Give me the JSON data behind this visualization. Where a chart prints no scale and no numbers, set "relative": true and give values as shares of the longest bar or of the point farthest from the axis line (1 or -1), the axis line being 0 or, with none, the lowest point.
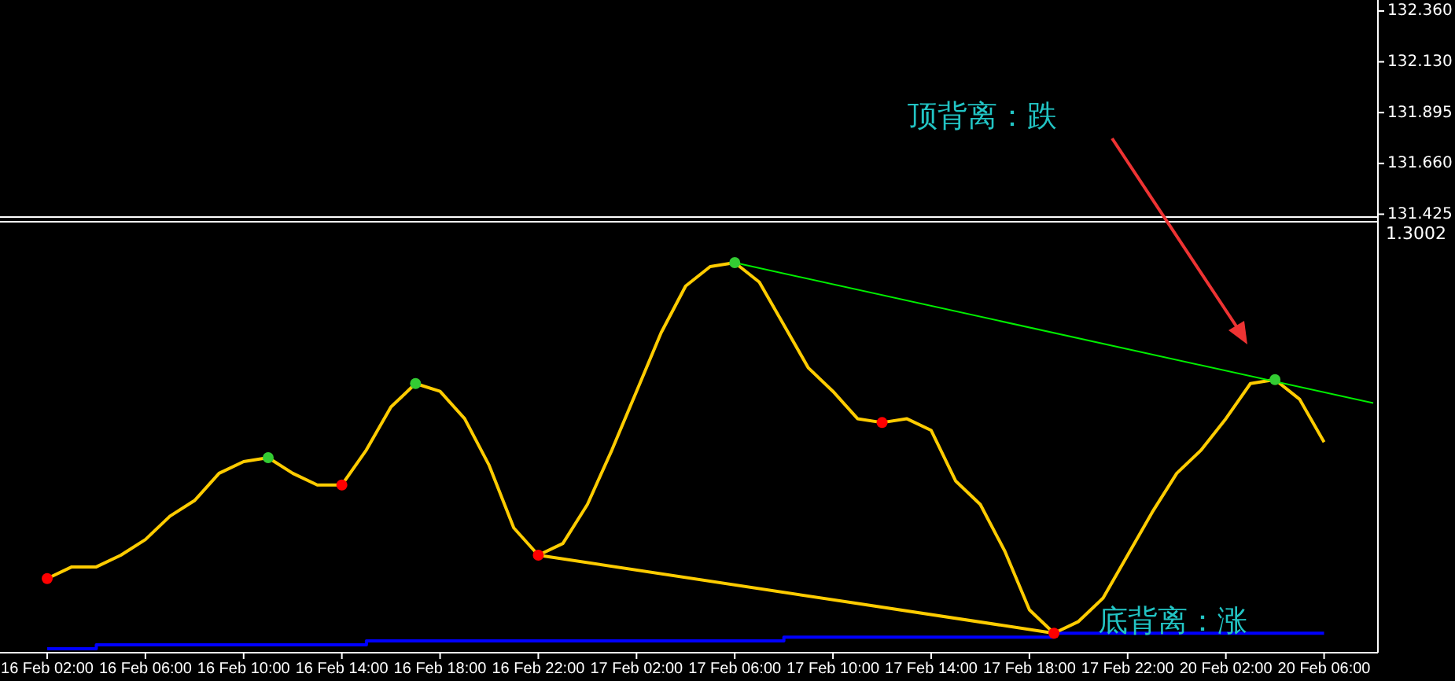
{
  "chart_data": {
    "type": "line",
    "relative": true,
    "tick_labels": "x",
    "categories": [
      "16 Feb 02:00",
      null,
      null,
      null,
      "16 Feb 06:00",
      null,
      null,
      null,
      "16 Feb 10:00",
      null,
      null,
      null,
      "16 Feb 14:00",
      null,
      null,
      null,
      "16 Feb 18:00",
      null,
      null,
      null,
      "16 Feb 22:00",
      null,
      null,
      null,
      "17 Feb 02:00",
      null,
      null,
      null,
      "17 Feb 06:00",
      null,
      null,
      null,
      "17 Feb 10:00",
      null,
      null,
      null,
      "17 Feb 14:00",
      null,
      null,
      null,
      "17 Feb 18:00",
      null,
      null,
      null,
      "17 Feb 22:00",
      null,
      null,
      null,
      "20 Feb 02:00",
      null,
      null,
      null,
      "20 Feb 06:00",
      null,
      null
    ],
    "series": [
      {
        "type": "step",
        "color": "#0000ff",
        "values": [
          0.01,
          0.01,
          0.02,
          0.02,
          0.02,
          0.02,
          0.02,
          0.02,
          0.02,
          0.02,
          0.02,
          0.02,
          0.02,
          0.03,
          0.03,
          0.03,
          0.03,
          0.03,
          0.03,
          0.03,
          0.03,
          0.03,
          0.03,
          0.03,
          0.03,
          0.03,
          0.03,
          0.03,
          0.03,
          0.03,
          0.04,
          0.04,
          0.04,
          0.04,
          0.04,
          0.04,
          0.04,
          0.04,
          0.04,
          0.04,
          0.04,
          0.05,
          0.05,
          0.05,
          0.05,
          0.05,
          0.05,
          0.05,
          0.05,
          0.05,
          0.05,
          0.05,
          0.05,
          null,
          null
        ]
      },
      {
        "type": "line",
        "color": "#ffcc00",
        "values": [
          0.19,
          0.22,
          0.22,
          0.25,
          0.29,
          0.35,
          0.39,
          0.46,
          0.49,
          0.5,
          0.46,
          0.43,
          0.43,
          0.52,
          0.63,
          0.69,
          0.67,
          0.6,
          0.48,
          0.32,
          0.25,
          0.28,
          0.38,
          0.52,
          0.67,
          0.82,
          0.94,
          0.99,
          1,
          0.95,
          0.84,
          0.73,
          0.67,
          0.6,
          0.59,
          0.6,
          0.57,
          0.44,
          0.38,
          0.26,
          0.11,
          0.05,
          0.08,
          0.14,
          0.25,
          0.36,
          0.46,
          0.52,
          0.6,
          0.69,
          0.7,
          0.65,
          0.54,
          null,
          null
        ]
      },
      {
        "type": "line",
        "color": "#00ee00",
        "values": [
          null,
          null,
          null,
          null,
          null,
          null,
          null,
          null,
          null,
          null,
          null,
          null,
          null,
          null,
          null,
          null,
          null,
          null,
          null,
          null,
          null,
          null,
          null,
          null,
          null,
          null,
          null,
          null,
          1,
          null,
          null,
          null,
          null,
          null,
          null,
          null,
          null,
          null,
          null,
          null,
          null,
          null,
          null,
          null,
          null,
          null,
          null,
          null,
          null,
          null,
          null,
          null,
          null,
          null,
          0.64
        ]
      },
      {
        "type": "line",
        "color": "#ffcc00",
        "values": [
          null,
          null,
          null,
          null,
          null,
          null,
          null,
          null,
          null,
          null,
          null,
          null,
          null,
          null,
          null,
          null,
          null,
          null,
          null,
          null,
          0.25,
          null,
          null,
          null,
          null,
          null,
          null,
          null,
          null,
          null,
          null,
          null,
          null,
          null,
          null,
          null,
          null,
          null,
          null,
          null,
          null,
          0.05,
          null,
          null,
          null,
          null,
          null,
          null,
          null,
          null,
          null,
          null,
          null,
          null,
          null
        ]
      },
      {
        "type": "scatter",
        "marker": "circle",
        "color": "#33cc33",
        "values": [
          null,
          null,
          null,
          null,
          null,
          null,
          null,
          null,
          null,
          0.5,
          null,
          null,
          null,
          null,
          null,
          0.69,
          null,
          null,
          null,
          null,
          null,
          null,
          null,
          null,
          null,
          null,
          null,
          null,
          1,
          null,
          null,
          null,
          null,
          null,
          null,
          null,
          null,
          null,
          null,
          null,
          null,
          null,
          null,
          null,
          null,
          null,
          null,
          null,
          null,
          null,
          0.7,
          null,
          null,
          null,
          null
        ]
      },
      {
        "type": "scatter",
        "marker": "circle",
        "color": "#ff0000",
        "values": [
          0.19,
          null,
          null,
          null,
          null,
          null,
          null,
          null,
          null,
          null,
          null,
          null,
          0.43,
          null,
          null,
          null,
          null,
          null,
          null,
          null,
          0.25,
          null,
          null,
          null,
          null,
          null,
          null,
          null,
          null,
          null,
          null,
          null,
          null,
          null,
          0.59,
          null,
          null,
          null,
          null,
          null,
          null,
          0.05,
          null,
          null,
          null,
          null,
          null,
          null,
          null,
          null,
          null,
          null,
          null,
          null,
          null
        ]
      }
    ],
    "annotations": [
      "顶背离：跌",
      "底背离：涨",
      "1.3002",
      "132.360",
      "132.130",
      "131.895",
      "131.660",
      "131.425"
    ]
  }
}
